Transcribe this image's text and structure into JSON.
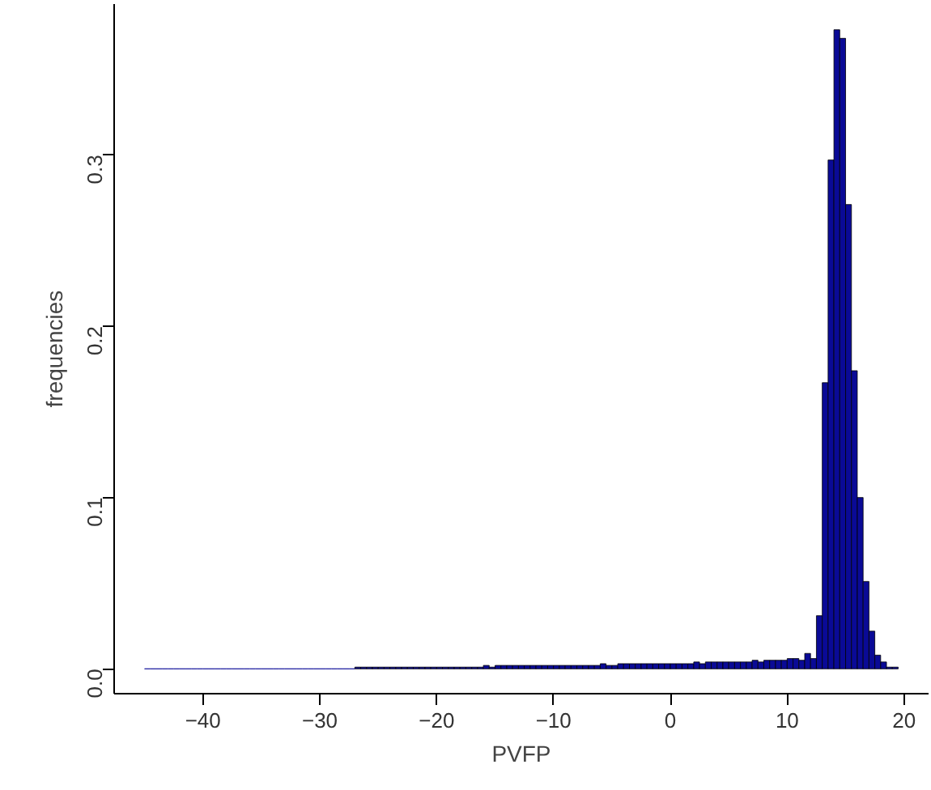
{
  "chart_data": {
    "type": "histogram",
    "xlabel": "PVFP",
    "ylabel": "frequencies",
    "bins": [
      -45,
      -44.5,
      -44,
      -43.5,
      -43,
      -42.5,
      -42,
      -41.5,
      -41,
      -40.5,
      -40,
      -39.5,
      -39,
      -38.5,
      -38,
      -37.5,
      -37,
      -36.5,
      -36,
      -35.5,
      -35,
      -34.5,
      -34,
      -33.5,
      -33,
      -32.5,
      -32,
      -31.5,
      -31,
      -30.5,
      -30,
      -29.5,
      -29,
      -28.5,
      -28,
      -27.5,
      -27,
      -26.5,
      -26,
      -25.5,
      -25,
      -24.5,
      -24,
      -23.5,
      -23,
      -22.5,
      -22,
      -21.5,
      -21,
      -20.5,
      -20,
      -19.5,
      -19,
      -18.5,
      -18,
      -17.5,
      -17,
      -16.5,
      -16,
      -15.5,
      -15,
      -14.5,
      -14,
      -13.5,
      -13,
      -12.5,
      -12,
      -11.5,
      -11,
      -10.5,
      -10,
      -9.5,
      -9,
      -8.5,
      -8,
      -7.5,
      -7,
      -6.5,
      -6,
      -5.5,
      -5,
      -4.5,
      -4,
      -3.5,
      -3,
      -2.5,
      -2,
      -1.5,
      -1,
      -0.5,
      0,
      0.5,
      1,
      1.5,
      2,
      2.5,
      3,
      3.5,
      4,
      4.5,
      5,
      5.5,
      6,
      6.5,
      7,
      7.5,
      8,
      8.5,
      9,
      9.5,
      10,
      10.5,
      11,
      11.5,
      12,
      12.5,
      13,
      13.5,
      14,
      14.5,
      15,
      15.5,
      16,
      16.5,
      17,
      17.5,
      18,
      18.5,
      19,
      19.5
    ],
    "values": [
      0,
      0,
      0,
      0,
      0,
      0,
      0,
      0,
      0,
      0,
      0,
      0,
      0,
      0,
      0,
      0,
      0,
      0,
      0,
      0,
      0,
      0,
      0,
      0,
      0,
      0,
      0,
      0,
      0,
      0,
      0,
      0,
      0,
      0,
      0,
      0,
      0.001,
      0.001,
      0.001,
      0.001,
      0.001,
      0.001,
      0.001,
      0.001,
      0.001,
      0.001,
      0.001,
      0.001,
      0.001,
      0.001,
      0.001,
      0.001,
      0.001,
      0.001,
      0.001,
      0.001,
      0.001,
      0.001,
      0.002,
      0.001,
      0.002,
      0.002,
      0.002,
      0.002,
      0.002,
      0.002,
      0.002,
      0.002,
      0.002,
      0.002,
      0.002,
      0.002,
      0.002,
      0.002,
      0.002,
      0.002,
      0.002,
      0.002,
      0.003,
      0.002,
      0.002,
      0.003,
      0.003,
      0.003,
      0.003,
      0.003,
      0.003,
      0.003,
      0.003,
      0.003,
      0.003,
      0.003,
      0.003,
      0.003,
      0.004,
      0.003,
      0.004,
      0.004,
      0.004,
      0.004,
      0.004,
      0.004,
      0.004,
      0.004,
      0.005,
      0.004,
      0.005,
      0.005,
      0.005,
      0.005,
      0.006,
      0.006,
      0.005,
      0.009,
      0.006,
      0.031,
      0.167,
      0.297,
      0.373,
      0.368,
      0.271,
      0.174,
      0.1,
      0.051,
      0.022,
      0.008,
      0.004,
      0.001,
      0.001
    ],
    "color": "#0a0a96",
    "xlim": [
      -47.6,
      22.1
    ],
    "ylim": [
      -0.0145,
      0.388
    ],
    "xticks": [
      {
        "value": -40,
        "label": "−40"
      },
      {
        "value": -30,
        "label": "−30"
      },
      {
        "value": -20,
        "label": "−20"
      },
      {
        "value": -10,
        "label": "−10"
      },
      0,
      10,
      20
    ],
    "yticks": [
      {
        "value": 0,
        "label": "0.0"
      },
      0.1,
      0.2,
      0.3
    ],
    "grid": false
  }
}
